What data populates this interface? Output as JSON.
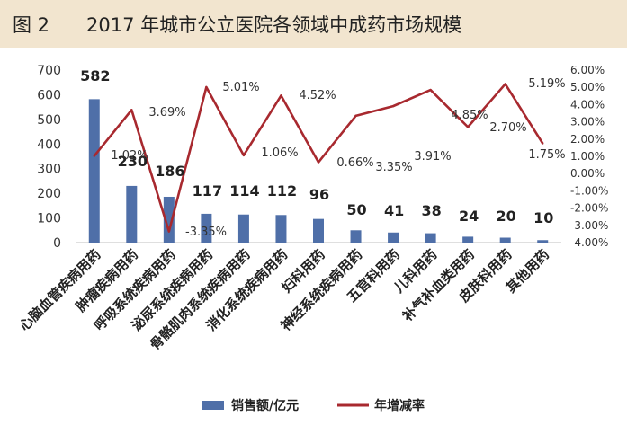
{
  "header": {
    "figure_label": "图 2",
    "title": "2017 年城市公立医院各领域中成药市场规模"
  },
  "colors": {
    "bar": "#4f6fa8",
    "line": "#a8292f",
    "axis": "#444444",
    "title_band": "#f2e5cf"
  },
  "chart_data": {
    "type": "bar",
    "categories": [
      "心脑血管疾病用药",
      "肿瘤疾病用药",
      "呼吸系统疾病用药",
      "泌尿系统疾病用药",
      "骨骼肌肉系统疾病用药",
      "消化系统疾病用药",
      "妇科用药",
      "神经系统疾病用药",
      "五官科用药",
      "儿科用药",
      "补气补血类用药",
      "皮肤科用药",
      "其他用药"
    ],
    "series": [
      {
        "name": "销售额/亿元",
        "type": "bar",
        "axis": "left",
        "values": [
          582,
          230,
          186,
          117,
          114,
          112,
          96,
          50,
          41,
          38,
          24,
          20,
          10
        ],
        "labels": [
          "582",
          "230",
          "186",
          "117",
          "114",
          "112",
          "96",
          "50",
          "41",
          "38",
          "24",
          "20",
          "10"
        ]
      },
      {
        "name": "年增减率",
        "type": "line",
        "axis": "right",
        "values": [
          1.02,
          3.69,
          -3.35,
          5.01,
          1.06,
          4.52,
          0.66,
          3.35,
          3.91,
          4.85,
          2.7,
          5.19,
          1.75
        ],
        "labels": [
          "1.02%",
          "3.69%",
          "-3.35%",
          "5.01%",
          "1.06%",
          "4.52%",
          "0.66%",
          "3.35%",
          "3.91%",
          "4.85%",
          "2.70%",
          "5.19%",
          "1.75%"
        ]
      }
    ],
    "y_left": {
      "ylim": [
        0,
        700
      ],
      "ticks": [
        0,
        100,
        200,
        300,
        400,
        500,
        600,
        700
      ],
      "tick_labels": [
        "0",
        "100",
        "200",
        "300",
        "400",
        "500",
        "600",
        "700"
      ]
    },
    "y_right": {
      "ylim": [
        -4,
        6
      ],
      "ticks": [
        -4,
        -3,
        -2,
        -1,
        0,
        1,
        2,
        3,
        4,
        5,
        6
      ],
      "tick_labels": [
        "-4.00%",
        "-3.00%",
        "-2.00%",
        "-1.00%",
        "0.00%",
        "1.00%",
        "2.00%",
        "3.00%",
        "4.00%",
        "5.00%",
        "6.00%"
      ]
    },
    "grid": false,
    "legend": {
      "placement": "bottom",
      "items": [
        {
          "name": "销售额/亿元",
          "kind": "bar"
        },
        {
          "name": "年增减率",
          "kind": "line"
        }
      ]
    }
  }
}
